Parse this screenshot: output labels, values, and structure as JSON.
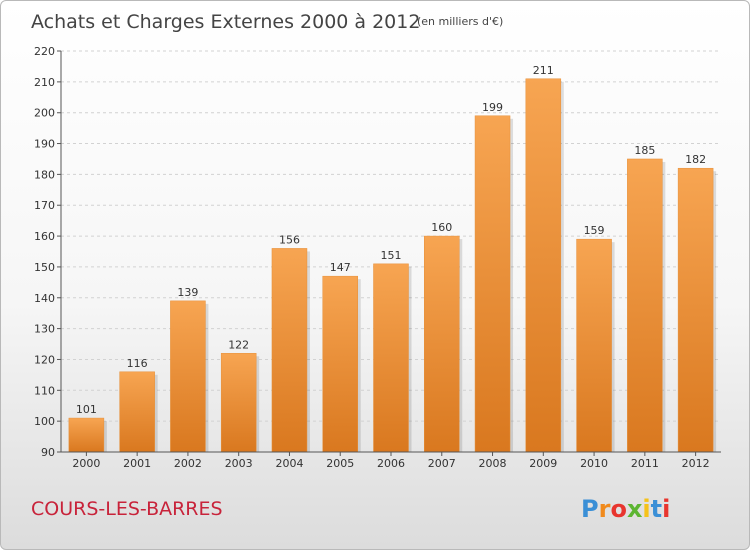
{
  "chart_data": {
    "type": "bar",
    "title": "Achats et Charges Externes 2000 à 2012",
    "subtitle": "(en milliers d'€)",
    "categories": [
      "2000",
      "2001",
      "2002",
      "2003",
      "2004",
      "2005",
      "2006",
      "2007",
      "2008",
      "2009",
      "2010",
      "2011",
      "2012"
    ],
    "values": [
      101,
      116,
      139,
      122,
      156,
      147,
      151,
      160,
      199,
      211,
      159,
      185,
      182
    ],
    "ylim": [
      90,
      220
    ],
    "yticks": [
      90,
      100,
      110,
      120,
      130,
      140,
      150,
      160,
      170,
      180,
      190,
      200,
      210,
      220
    ],
    "grid": true,
    "bar_color_top": "#f7a552",
    "bar_color_bottom": "#d9781f"
  },
  "footer": {
    "commune": "COURS-LES-BARRES",
    "logo_letters": [
      "P",
      "r",
      "o",
      "x",
      "i",
      "t",
      "i"
    ],
    "logo_colors": [
      "#3a8fd6",
      "#f08a1c",
      "#e8352e",
      "#5cb531",
      "#f5c21a",
      "#3a8fd6",
      "#e8352e"
    ]
  }
}
